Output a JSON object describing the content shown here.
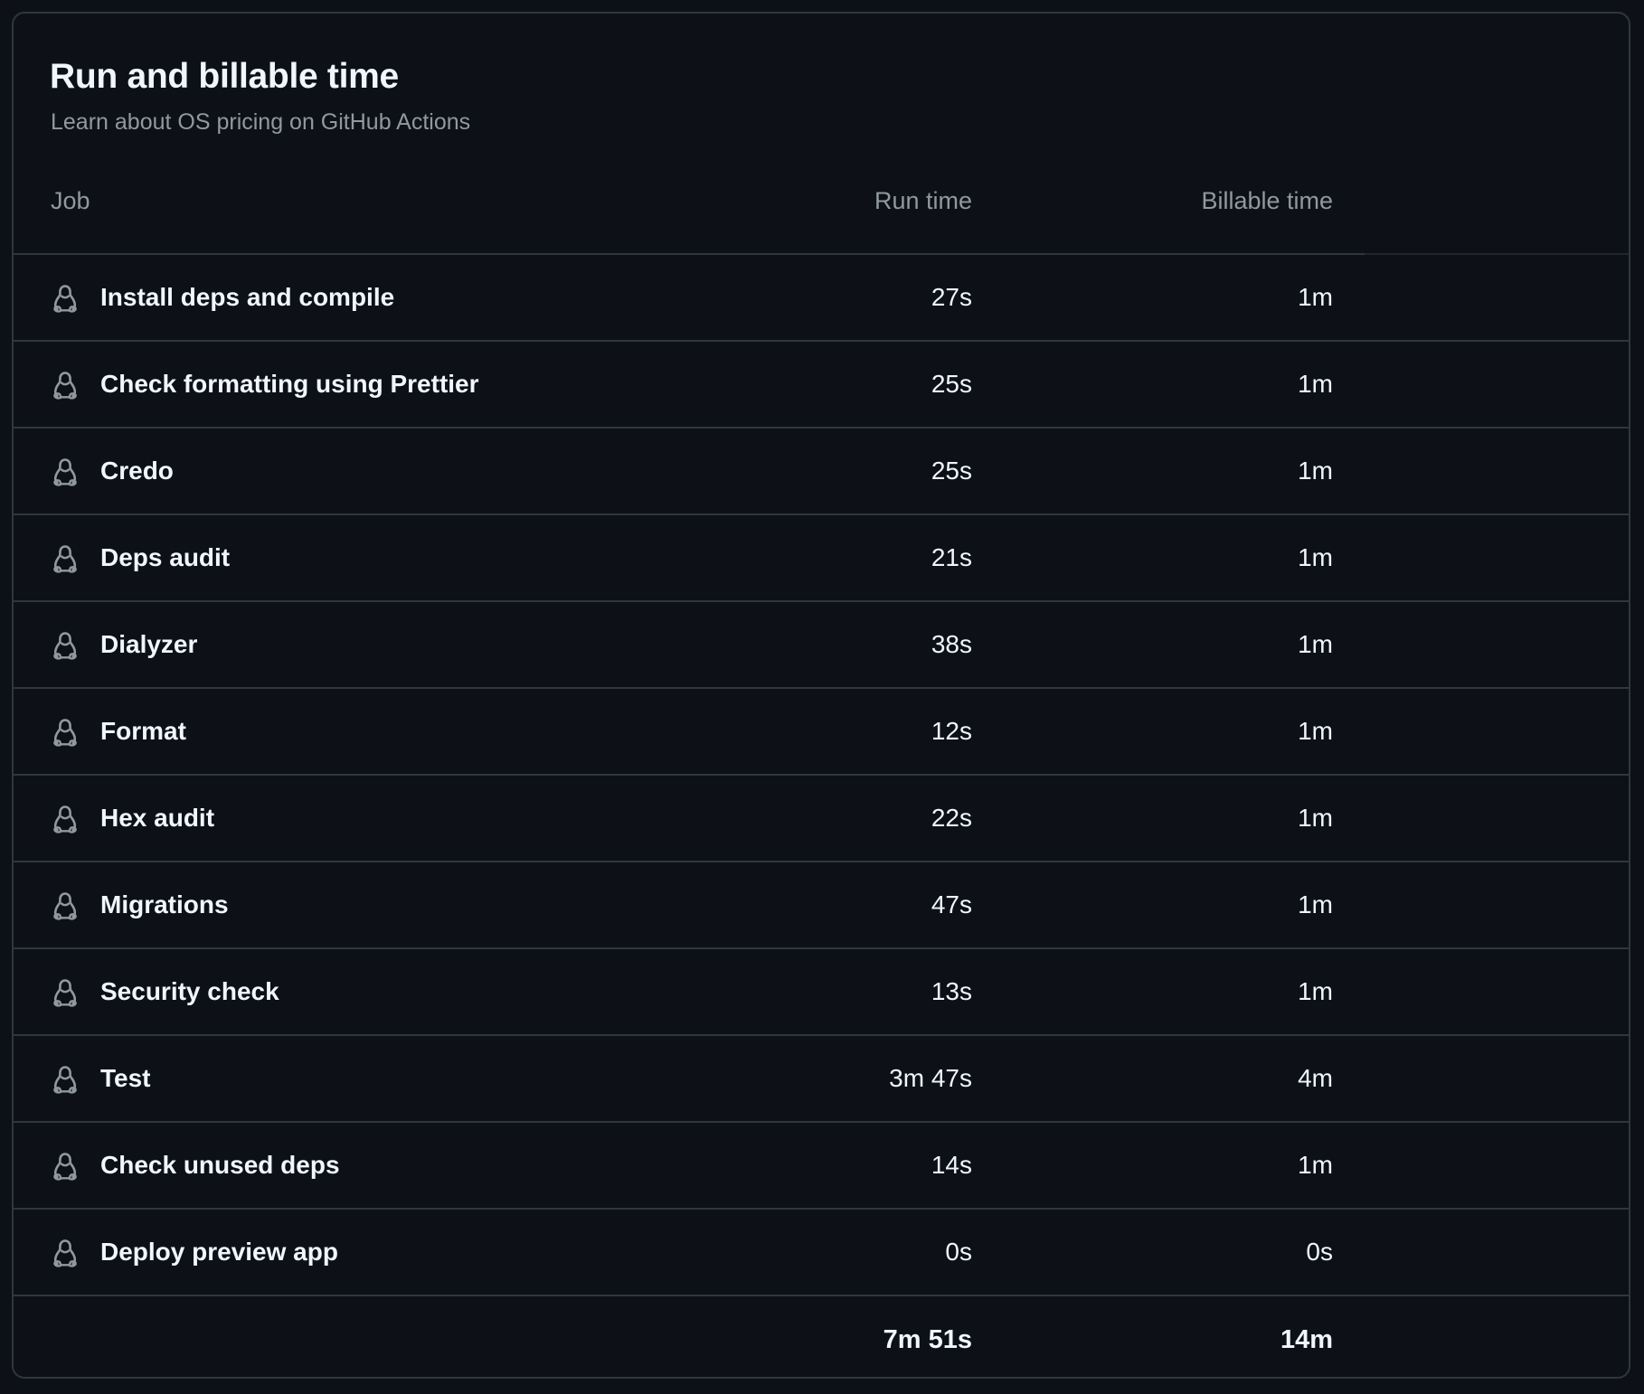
{
  "panel": {
    "title": "Run and billable time",
    "subtitle": "Learn about OS pricing on GitHub Actions"
  },
  "table": {
    "headers": {
      "job": "Job",
      "run_time": "Run time",
      "billable_time": "Billable time"
    },
    "row_icon": "linux-penguin-icon",
    "rows": [
      {
        "job": "Install deps and compile",
        "run_time": "27s",
        "billable_time": "1m"
      },
      {
        "job": "Check formatting using Prettier",
        "run_time": "25s",
        "billable_time": "1m"
      },
      {
        "job": "Credo",
        "run_time": "25s",
        "billable_time": "1m"
      },
      {
        "job": "Deps audit",
        "run_time": "21s",
        "billable_time": "1m"
      },
      {
        "job": "Dialyzer",
        "run_time": "38s",
        "billable_time": "1m"
      },
      {
        "job": "Format",
        "run_time": "12s",
        "billable_time": "1m"
      },
      {
        "job": "Hex audit",
        "run_time": "22s",
        "billable_time": "1m"
      },
      {
        "job": "Migrations",
        "run_time": "47s",
        "billable_time": "1m"
      },
      {
        "job": "Security check",
        "run_time": "13s",
        "billable_time": "1m"
      },
      {
        "job": "Test",
        "run_time": "3m 47s",
        "billable_time": "4m"
      },
      {
        "job": "Check unused deps",
        "run_time": "14s",
        "billable_time": "1m"
      },
      {
        "job": "Deploy preview app",
        "run_time": "0s",
        "billable_time": "0s"
      }
    ],
    "totals": {
      "run_time": "7m 51s",
      "billable_time": "14m"
    }
  },
  "colors": {
    "background": "#0d1117",
    "border": "#30363d",
    "text_primary": "#f0f6fc",
    "text_muted": "#9198a1"
  }
}
